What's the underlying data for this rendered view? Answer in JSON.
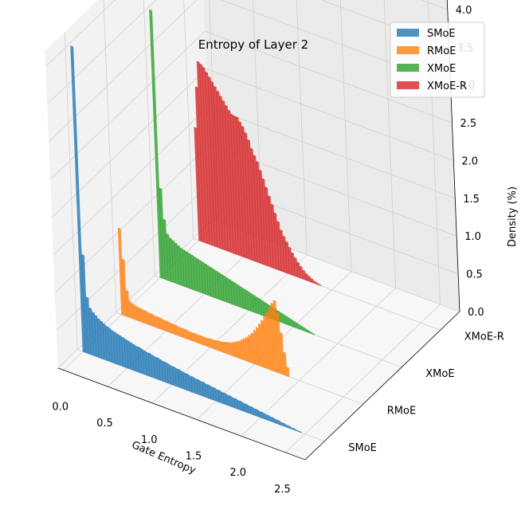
{
  "chart_data": {
    "type": "bar",
    "title": "Entropy of Layer 2",
    "xlabel": "Gate Entropy",
    "ylabel": "",
    "zlabel": "Density (%)",
    "x_ticks": [
      "0.0",
      "0.5",
      "1.0",
      "1.5",
      "2.0",
      "2.5"
    ],
    "y_ticks": [
      "SMoE",
      "RMoE",
      "XMoE",
      "XMoE-R"
    ],
    "z_ticks": [
      "0.0",
      "0.5",
      "1.0",
      "1.5",
      "2.0",
      "2.5",
      "3.0",
      "3.5",
      "4.0"
    ],
    "xlim": [
      -0.06,
      2.72
    ],
    "zlim": [
      0,
      4.2
    ],
    "grid": true,
    "legend_position": "top-right",
    "bin_width": 0.03,
    "series": [
      {
        "name": "SMoE",
        "color": "#1f77b4",
        "x_start": 0.0,
        "values": [
          4.05,
          1.3,
          0.75,
          0.62,
          0.58,
          0.55,
          0.52,
          0.5,
          0.48,
          0.46,
          0.45,
          0.43,
          0.42,
          0.41,
          0.4,
          0.39,
          0.38,
          0.37,
          0.36,
          0.35,
          0.34,
          0.34,
          0.33,
          0.32,
          0.31,
          0.31,
          0.3,
          0.29,
          0.29,
          0.28,
          0.27,
          0.27,
          0.26,
          0.25,
          0.25,
          0.24,
          0.24,
          0.23,
          0.22,
          0.22,
          0.21,
          0.21,
          0.2,
          0.2,
          0.19,
          0.19,
          0.18,
          0.18,
          0.17,
          0.17,
          0.16,
          0.16,
          0.15,
          0.15,
          0.14,
          0.14,
          0.13,
          0.13,
          0.12,
          0.12,
          0.11,
          0.11,
          0.1,
          0.1,
          0.09,
          0.09,
          0.08,
          0.08,
          0.07,
          0.07,
          0.06,
          0.06,
          0.05,
          0.05,
          0.04,
          0.04,
          0.03,
          0.03,
          0.02,
          0.02,
          0.01,
          0.01
        ]
      },
      {
        "name": "RMoE",
        "color": "#ff7f0e",
        "x_start": 0.0,
        "values": [
          1.15,
          0.75,
          0.35,
          0.22,
          0.2,
          0.19,
          0.18,
          0.18,
          0.17,
          0.17,
          0.16,
          0.16,
          0.15,
          0.15,
          0.15,
          0.14,
          0.14,
          0.14,
          0.13,
          0.13,
          0.13,
          0.12,
          0.12,
          0.12,
          0.12,
          0.11,
          0.11,
          0.11,
          0.11,
          0.11,
          0.11,
          0.11,
          0.11,
          0.12,
          0.12,
          0.12,
          0.13,
          0.13,
          0.14,
          0.15,
          0.16,
          0.17,
          0.19,
          0.21,
          0.23,
          0.26,
          0.29,
          0.32,
          0.36,
          0.4,
          0.45,
          0.5,
          0.56,
          0.62,
          0.68,
          0.75,
          0.82,
          0.9,
          0.95,
          0.8,
          0.55,
          0.3,
          0.12
        ]
      },
      {
        "name": "XMoE",
        "color": "#2ca02c",
        "x_start": 0.0,
        "values": [
          3.55,
          1.2,
          0.8,
          0.62,
          0.58,
          0.56,
          0.54,
          0.52,
          0.5,
          0.49,
          0.48,
          0.47,
          0.46,
          0.45,
          0.44,
          0.43,
          0.42,
          0.41,
          0.4,
          0.39,
          0.38,
          0.37,
          0.36,
          0.35,
          0.34,
          0.33,
          0.32,
          0.31,
          0.3,
          0.29,
          0.28,
          0.27,
          0.26,
          0.25,
          0.24,
          0.23,
          0.22,
          0.21,
          0.2,
          0.19,
          0.18,
          0.17,
          0.16,
          0.15,
          0.14,
          0.13,
          0.12,
          0.11,
          0.1,
          0.09,
          0.08,
          0.07,
          0.06,
          0.05,
          0.04,
          0.03,
          0.02,
          0.01
        ]
      },
      {
        "name": "XMoE-R",
        "color": "#d62728",
        "x_start": 0.0,
        "values": [
          1.5,
          2.05,
          2.4,
          2.38,
          2.35,
          2.3,
          2.25,
          2.2,
          2.15,
          2.1,
          2.05,
          2.0,
          1.95,
          1.9,
          1.86,
          1.85,
          1.85,
          1.8,
          1.75,
          1.68,
          1.6,
          1.5,
          1.42,
          1.35,
          1.25,
          1.15,
          1.05,
          0.95,
          0.85,
          0.75,
          0.65,
          0.55,
          0.48,
          0.42,
          0.36,
          0.3,
          0.25,
          0.2,
          0.16,
          0.12,
          0.09,
          0.07,
          0.05,
          0.03,
          0.02,
          0.01
        ]
      }
    ]
  }
}
